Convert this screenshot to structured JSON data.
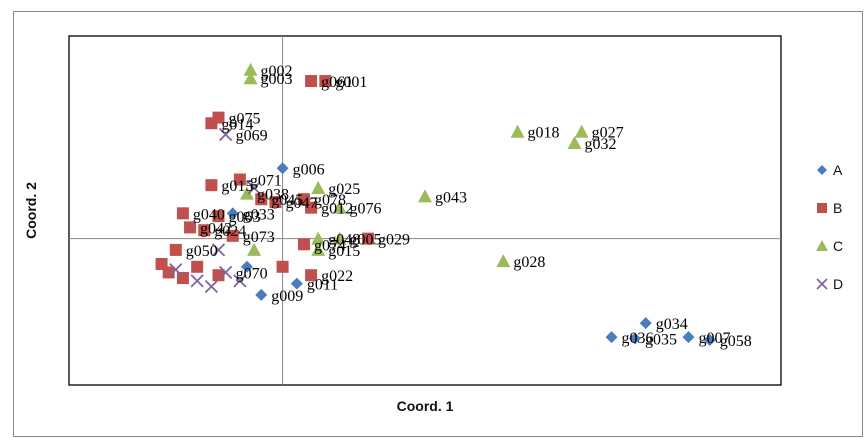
{
  "chart_data": {
    "type": "scatter",
    "title": "",
    "xlabel": "Coord. 1",
    "ylabel": "Coord. 2",
    "xlim": [
      -0.3,
      0.7
    ],
    "ylim": [
      -0.52,
      0.72
    ],
    "grid": false,
    "legend_position": "right",
    "series": [
      {
        "name": "A",
        "color": "#4a7ebb",
        "marker": "diamond",
        "points": [
          {
            "x": 0.0,
            "y": 0.25,
            "label": "g006"
          },
          {
            "x": -0.07,
            "y": 0.09,
            "label": "g033"
          },
          {
            "x": -0.05,
            "y": -0.1,
            "label": ""
          },
          {
            "x": -0.03,
            "y": -0.2,
            "label": "g009"
          },
          {
            "x": 0.02,
            "y": -0.16,
            "label": "g011"
          },
          {
            "x": 0.462,
            "y": -0.35,
            "label": "g036"
          },
          {
            "x": 0.495,
            "y": -0.355,
            "label": "g035"
          },
          {
            "x": 0.51,
            "y": -0.3,
            "label": "g034"
          },
          {
            "x": 0.57,
            "y": -0.35,
            "label": "g007"
          },
          {
            "x": 0.6,
            "y": -0.36,
            "label": "g058"
          }
        ]
      },
      {
        "name": "B",
        "color": "#c0504d",
        "marker": "square",
        "points": [
          {
            "x": 0.04,
            "y": 0.56,
            "label": "g061"
          },
          {
            "x": 0.06,
            "y": 0.56,
            "label": "g001"
          },
          {
            "x": -0.09,
            "y": 0.43,
            "label": "g075"
          },
          {
            "x": -0.1,
            "y": 0.41,
            "label": "g014"
          },
          {
            "x": -0.06,
            "y": 0.21,
            "label": "g071"
          },
          {
            "x": -0.1,
            "y": 0.19,
            "label": "g015"
          },
          {
            "x": -0.03,
            "y": 0.14,
            "label": "g045"
          },
          {
            "x": -0.01,
            "y": 0.13,
            "label": "g047"
          },
          {
            "x": 0.03,
            "y": 0.14,
            "label": "g078"
          },
          {
            "x": 0.04,
            "y": 0.11,
            "label": "g012"
          },
          {
            "x": -0.14,
            "y": 0.09,
            "label": "g040"
          },
          {
            "x": -0.09,
            "y": 0.08,
            "label": "g063"
          },
          {
            "x": -0.13,
            "y": 0.04,
            "label": "g042"
          },
          {
            "x": -0.11,
            "y": 0.03,
            "label": "g024"
          },
          {
            "x": -0.07,
            "y": 0.01,
            "label": "g073"
          },
          {
            "x": 0.12,
            "y": 0.0,
            "label": "g029"
          },
          {
            "x": 0.03,
            "y": -0.02,
            "label": "g074"
          },
          {
            "x": -0.15,
            "y": -0.04,
            "label": "g050"
          },
          {
            "x": -0.17,
            "y": -0.09,
            "label": ""
          },
          {
            "x": -0.16,
            "y": -0.12,
            "label": ""
          },
          {
            "x": -0.12,
            "y": -0.1,
            "label": ""
          },
          {
            "x": -0.14,
            "y": -0.14,
            "label": ""
          },
          {
            "x": -0.09,
            "y": -0.13,
            "label": ""
          },
          {
            "x": 0.0,
            "y": -0.1,
            "label": ""
          },
          {
            "x": 0.04,
            "y": -0.13,
            "label": "g022"
          }
        ]
      },
      {
        "name": "C",
        "color": "#9bbb59",
        "marker": "triangle",
        "points": [
          {
            "x": -0.045,
            "y": 0.6,
            "label": "g002"
          },
          {
            "x": -0.045,
            "y": 0.57,
            "label": "g003"
          },
          {
            "x": 0.33,
            "y": 0.38,
            "label": "g018"
          },
          {
            "x": 0.42,
            "y": 0.38,
            "label": "g027"
          },
          {
            "x": 0.41,
            "y": 0.34,
            "label": "g032"
          },
          {
            "x": 0.05,
            "y": 0.18,
            "label": "g025"
          },
          {
            "x": -0.05,
            "y": 0.16,
            "label": "g038"
          },
          {
            "x": 0.2,
            "y": 0.15,
            "label": "g043"
          },
          {
            "x": 0.08,
            "y": 0.11,
            "label": "g076"
          },
          {
            "x": 0.05,
            "y": 0.0,
            "label": "g048"
          },
          {
            "x": 0.08,
            "y": 0.0,
            "label": "g005"
          },
          {
            "x": 0.05,
            "y": -0.04,
            "label": "g015"
          },
          {
            "x": -0.04,
            "y": -0.04,
            "label": ""
          },
          {
            "x": 0.31,
            "y": -0.08,
            "label": "g028"
          }
        ]
      },
      {
        "name": "D",
        "color": "#8064a2",
        "marker": "x",
        "points": [
          {
            "x": -0.08,
            "y": 0.37,
            "label": "g069"
          },
          {
            "x": -0.04,
            "y": 0.18,
            "label": ""
          },
          {
            "x": -0.09,
            "y": -0.04,
            "label": ""
          },
          {
            "x": -0.15,
            "y": -0.11,
            "label": ""
          },
          {
            "x": -0.12,
            "y": -0.15,
            "label": ""
          },
          {
            "x": -0.1,
            "y": -0.17,
            "label": ""
          },
          {
            "x": -0.06,
            "y": -0.15,
            "label": ""
          },
          {
            "x": -0.08,
            "y": -0.12,
            "label": "g070"
          }
        ]
      }
    ]
  }
}
